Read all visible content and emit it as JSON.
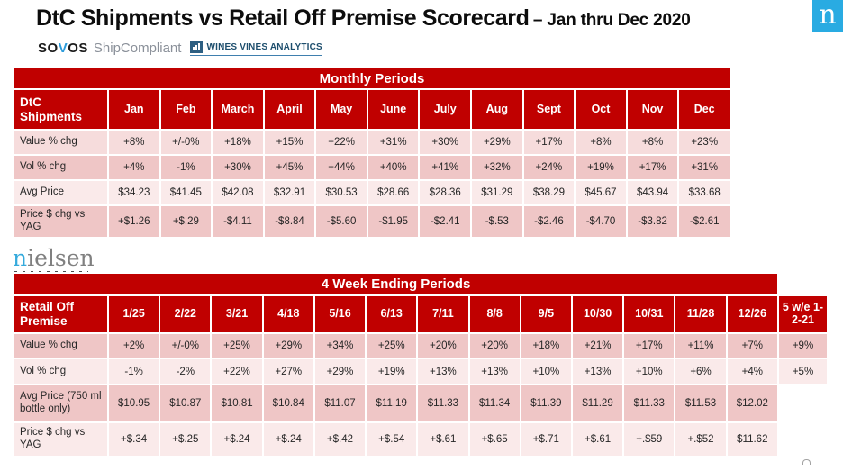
{
  "header": {
    "title": "DtC Shipments vs Retail Off Premise Scorecard",
    "subtitle": "– Jan thru Dec 2020",
    "logos": {
      "sovos_so": "SO",
      "sovos_v": "V",
      "sovos_os": "OS",
      "shipcompliant": "ShipCompliant",
      "wines_vines_analytics": "WINES VINES ANALYTICS",
      "nielsen_badge_letter": "n"
    }
  },
  "nielsen_logo": {
    "first_letter": "n",
    "rest": "ielsen"
  },
  "colors": {
    "table_red": "#C00000",
    "nielsen_blue": "#29ABE2",
    "sovos_v_blue": "#2D9CDB",
    "wva_navy": "#1d4e6d",
    "row_shade_light": "#F6DCDC",
    "row_shade_medium": "#EFC6C6",
    "row_shade_lightest": "#FAEAEA"
  },
  "monthly_table": {
    "banner": "Monthly Periods",
    "stub_header": "DtC Shipments",
    "columns": [
      "Jan",
      "Feb",
      "March",
      "April",
      "May",
      "June",
      "July",
      "Aug",
      "Sept",
      "Oct",
      "Nov",
      "Dec"
    ],
    "row_shades": [
      "#F6DCDC",
      "#EFC6C6",
      "#FAEAEA",
      "#EFC6C6"
    ],
    "rows": [
      {
        "label": "Value % chg",
        "values": [
          "+8%",
          "+/-0%",
          "+18%",
          "+15%",
          "+22%",
          "+31%",
          "+30%",
          "+29%",
          "+17%",
          "+8%",
          "+8%",
          "+23%"
        ]
      },
      {
        "label": "Vol % chg",
        "values": [
          "+4%",
          "-1%",
          "+30%",
          "+45%",
          "+44%",
          "+40%",
          "+41%",
          "+32%",
          "+24%",
          "+19%",
          "+17%",
          "+31%"
        ]
      },
      {
        "label": "Avg Price",
        "values": [
          "$34.23",
          "$41.45",
          "$42.08",
          "$32.91",
          "$30.53",
          "$28.66",
          "$28.36",
          "$31.29",
          "$38.29",
          "$45.67",
          "$43.94",
          "$33.68"
        ]
      },
      {
        "label": "Price $ chg vs YAG",
        "values": [
          "+$1.26",
          "+$.29",
          "-$4.11",
          "-$8.84",
          "-$5.60",
          "-$1.95",
          "-$2.41",
          "-$.53",
          "-$2.46",
          "-$4.70",
          "-$3.82",
          "-$2.61"
        ]
      }
    ]
  },
  "weekly_table": {
    "banner": "4 Week Ending Periods",
    "banner_colspan": 14,
    "stub_header": "Retail Off Premise",
    "columns": [
      "1/25",
      "2/22",
      "3/21",
      "4/18",
      "5/16",
      "6/13",
      "7/11",
      "8/8",
      "9/5",
      "10/30",
      "10/31",
      "11/28",
      "12/26",
      "5 w/e 1-2-21"
    ],
    "row_shades": [
      "#EFC6C6",
      "#FAEAEA",
      "#EFC6C6",
      "#FAEAEA"
    ],
    "rows": [
      {
        "label": "Value % chg",
        "values": [
          "+2%",
          "+/-0%",
          "+25%",
          "+29%",
          "+34%",
          "+25%",
          "+20%",
          "+20%",
          "+18%",
          "+21%",
          "+17%",
          "+11%",
          "+7%",
          "+9%"
        ]
      },
      {
        "label": "Vol % chg",
        "values": [
          "-1%",
          "-2%",
          "+22%",
          "+27%",
          "+29%",
          "+19%",
          "+13%",
          "+13%",
          "+10%",
          "+13%",
          "+10%",
          "+6%",
          "+4%",
          "+5%"
        ]
      },
      {
        "label": "Avg Price (750 ml bottle only)",
        "values": [
          "$10.95",
          "$10.87",
          "$10.81",
          "$10.84",
          "$11.07",
          "$11.19",
          "$11.33",
          "$11.34",
          "$11.39",
          "$11.29",
          "$11.33",
          "$11.53",
          "$12.02",
          ""
        ]
      },
      {
        "label": "Price $ chg vs YAG",
        "values": [
          "+$.34",
          "+$.25",
          "+$.24",
          "+$.24",
          "+$.42",
          "+$.54",
          "+$.61",
          "+$.65",
          "+$.71",
          "+$.61",
          "+.$59",
          "+.$52",
          "$11.62",
          ""
        ]
      }
    ]
  }
}
